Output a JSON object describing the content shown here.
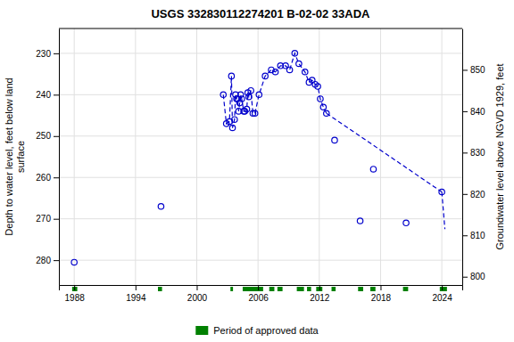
{
  "chart_data": {
    "type": "line",
    "title": "USGS 332830112274201 B-02-02 33ADA",
    "y_label": "Depth to water level, feet below land\nsurface",
    "y2_label": "Groundwater level above NGVD 1929, feet",
    "xlim": [
      1986.5,
      2026.0
    ],
    "xticks": [
      1988,
      1994,
      2000,
      2006,
      2012,
      2018,
      2024
    ],
    "ylim": [
      286,
      224
    ],
    "yticks": [
      230,
      240,
      250,
      260,
      270,
      280
    ],
    "y2lim": [
      798,
      860
    ],
    "y2ticks": [
      800,
      810,
      820,
      830,
      840,
      850
    ],
    "grid": true,
    "legend": "bottom",
    "series": [
      {
        "color": "#0000cc",
        "line_style": "dashed",
        "marker": "circle",
        "x": [
          2002.6,
          2002.9,
          2003.2,
          2003.4,
          2003.5,
          2003.7,
          2003.8,
          2003.9,
          2004.0,
          2004.1,
          2004.2,
          2004.3,
          2004.4,
          2004.6,
          2004.7,
          2004.9,
          2005.0,
          2005.1,
          2005.3,
          2005.5,
          2005.7,
          2006.1,
          2006.7,
          2007.3,
          2007.7,
          2008.2,
          2008.7,
          2009.1,
          2009.6,
          2010.0,
          2010.6,
          2011.0,
          2011.3,
          2011.6,
          2011.85,
          2012.1,
          2012.4,
          2012.7
        ],
        "values": [
          240.0,
          247.0,
          246.5,
          235.5,
          248.0,
          246.0,
          240.0,
          241.0,
          241.0,
          244.0,
          242.0,
          240.0,
          241.0,
          244.0,
          244.0,
          243.5,
          239.5,
          240.5,
          239.0,
          244.5,
          244.5,
          240.0,
          235.5,
          234.0,
          234.5,
          233.0,
          233.0,
          234.0,
          230.0,
          232.5,
          234.5,
          237.0,
          236.5,
          237.5,
          238.0,
          241.0,
          243.0,
          244.5
        ]
      },
      {
        "color": "#0000cc",
        "line_style": "none",
        "marker": "circle",
        "x": [
          1988.0,
          1996.5,
          2013.5,
          2016.0,
          2017.3,
          2020.5,
          2024.0
        ],
        "values": [
          280.5,
          267.0,
          251.0,
          270.5,
          258.0,
          271.0,
          263.5
        ]
      },
      {
        "color": "#0000cc",
        "line_style": "dashed",
        "marker": "none",
        "x": [
          2024.0,
          2024.3
        ],
        "values": [
          263.5,
          272.5
        ]
      },
      {
        "color": "#0000cc",
        "line_style": "dashed",
        "marker": "none",
        "x": [
          2012.7,
          2024.0
        ],
        "values": [
          244.5,
          263.5
        ]
      }
    ],
    "approved_periods": {
      "name": "Period of approved data",
      "color": "#008000",
      "ranges": [
        [
          1987.8,
          1988.3
        ],
        [
          1996.2,
          1996.6
        ],
        [
          2003.3,
          2003.55
        ],
        [
          2004.5,
          2006.5
        ],
        [
          2007.1,
          2007.6
        ],
        [
          2007.9,
          2008.4
        ],
        [
          2009.8,
          2010.5
        ],
        [
          2010.8,
          2011.2
        ],
        [
          2011.7,
          2012.3
        ],
        [
          2013.2,
          2013.6
        ],
        [
          2015.8,
          2016.3
        ],
        [
          2017.0,
          2017.5
        ],
        [
          2020.2,
          2020.7
        ],
        [
          2023.8,
          2024.5
        ]
      ]
    }
  }
}
